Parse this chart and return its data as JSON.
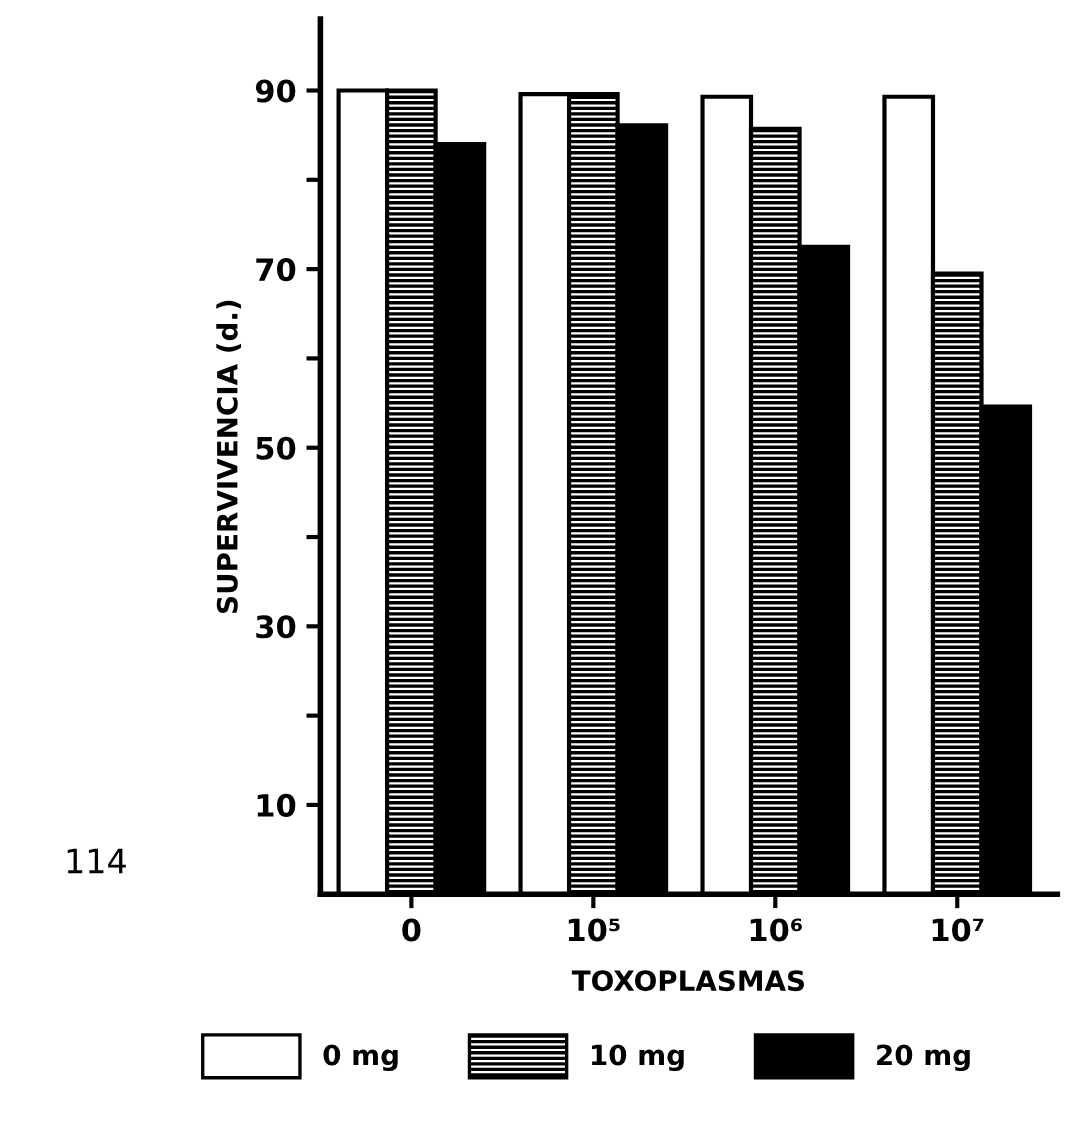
{
  "chart_data": {
    "type": "bar",
    "xlabel": "TOXOPLASMAS",
    "ylabel": "SUPERVIVENCIA (d.)",
    "categories": [
      "0",
      "10⁵",
      "10⁶",
      "10⁷"
    ],
    "series": [
      {
        "name": "0 mg",
        "color": "#ffffff",
        "values": [
          90,
          89.6,
          89.3,
          89.3
        ]
      },
      {
        "name": "10 mg",
        "color": "#000000",
        "values": [
          90,
          89.6,
          85.7,
          69.5
        ]
      },
      {
        "name": "20 mg",
        "color": "#000000",
        "values": [
          84,
          86.1,
          72.5,
          54.6
        ]
      }
    ],
    "ylim": [
      0,
      98
    ],
    "yticks": [
      10,
      {
        "value": 20,
        "label": null
      },
      30,
      {
        "value": 40,
        "label": null
      },
      50,
      {
        "value": 60,
        "label": null
      },
      70,
      {
        "value": 80,
        "label": null
      },
      90
    ],
    "grid": false,
    "legend": "bottom",
    "annotations": [
      "114"
    ]
  }
}
